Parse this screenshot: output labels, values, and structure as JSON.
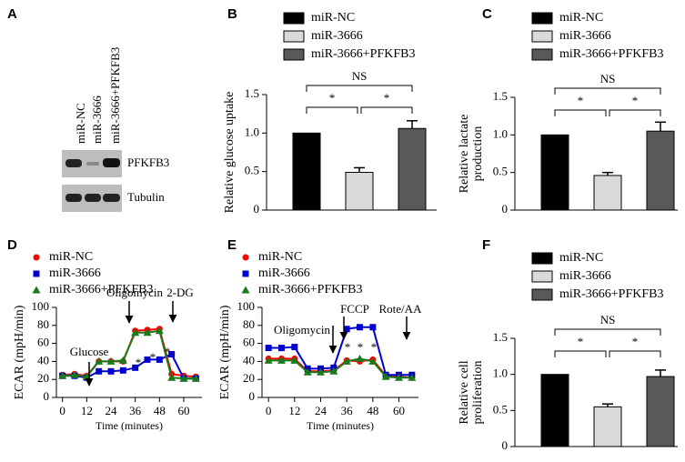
{
  "panel_labels": [
    "A",
    "B",
    "C",
    "D",
    "E",
    "F"
  ],
  "blot": {
    "lanes": [
      "miR-NC",
      "miR-3666",
      "miR-3666+PFKFB3"
    ],
    "bands": [
      "PFKFB3",
      "Tubulin"
    ]
  },
  "chart_data": [
    {
      "type": "bar",
      "categories": [
        "miR-NC",
        "miR-3666",
        "miR-3666+PFKFB3"
      ],
      "values": [
        1,
        0.49,
        1.06
      ],
      "errors": [
        0,
        0.06,
        0.1
      ],
      "colors": [
        "#000000",
        "#d9d9d9",
        "#595959"
      ],
      "ylabel": "Relative  glucose uptake",
      "ylim": [
        0,
        1.5
      ],
      "yticks": [
        0,
        0.5,
        {
          "value": 1,
          "label": "1.0"
        },
        1.5
      ],
      "significance": [
        "*",
        "*",
        "NS"
      ]
    },
    {
      "type": "bar",
      "categories": [
        "miR-NC",
        "miR-3666",
        "miR-3666+PFKFB3"
      ],
      "values": [
        1,
        0.46,
        1.05
      ],
      "errors": [
        0,
        0.04,
        0.12
      ],
      "colors": [
        "#000000",
        "#d9d9d9",
        "#595959"
      ],
      "ylabel": [
        "Relative  lactate",
        "production"
      ],
      "ylim": [
        0,
        1.5
      ],
      "yticks": [
        0,
        0.5,
        {
          "value": 1,
          "label": "1.0"
        },
        1.5
      ],
      "significance": [
        "*",
        "*",
        "NS"
      ]
    },
    {
      "type": "line",
      "x": [
        0,
        6,
        12,
        18,
        24,
        30,
        36,
        42,
        48,
        54,
        60,
        66
      ],
      "series": [
        {
          "name": "miR-NC",
          "color": "#ff0000",
          "marker": "circle",
          "values": [
            25,
            26,
            24,
            40,
            40,
            40,
            74,
            75,
            76,
            26,
            24,
            23
          ]
        },
        {
          "name": "miR-3666",
          "color": "#0000cc",
          "marker": "square",
          "values": [
            24,
            24,
            22,
            29,
            29,
            30,
            33,
            42,
            42,
            48,
            21,
            21
          ]
        },
        {
          "name": "miR-3666+PFKFB3",
          "color": "#1a7a1a",
          "marker": "triangle",
          "values": [
            24,
            25,
            23,
            40,
            40,
            41,
            72,
            72,
            74,
            22,
            21,
            21
          ]
        }
      ],
      "xlabel": "Time (minutes)",
      "ylabel": "ECAR (mpH/min)",
      "xlim": [
        -3,
        69
      ],
      "xticks": [
        0,
        12,
        24,
        36,
        48,
        60
      ],
      "ylim": [
        0,
        100
      ],
      "yticks": [
        0,
        20,
        40,
        60,
        80,
        100
      ],
      "annotations": [
        "Glucose",
        "Oligomycin",
        "2-DG"
      ],
      "asterisks": [
        "*",
        "*",
        "*"
      ]
    },
    {
      "type": "line",
      "x": [
        0,
        6,
        12,
        18,
        24,
        30,
        36,
        42,
        48,
        54,
        60,
        66
      ],
      "series": [
        {
          "name": "miR-NC",
          "color": "#ff0000",
          "marker": "circle",
          "values": [
            43,
            43,
            43,
            29,
            29,
            30,
            41,
            40,
            42,
            24,
            23,
            22
          ]
        },
        {
          "name": "miR-3666",
          "color": "#0000cc",
          "marker": "square",
          "values": [
            55,
            55,
            56,
            32,
            32,
            33,
            76,
            78,
            78,
            25,
            25,
            25
          ]
        },
        {
          "name": "miR-3666+PFKFB3",
          "color": "#1a7a1a",
          "marker": "triangle",
          "values": [
            41,
            41,
            41,
            28,
            28,
            29,
            40,
            43,
            40,
            23,
            22,
            22
          ]
        }
      ],
      "xlabel": "Time (minutes)",
      "ylabel": "ECAR (mpH/min)",
      "xlim": [
        -3,
        69
      ],
      "xticks": [
        0,
        12,
        24,
        36,
        48,
        60
      ],
      "ylim": [
        0,
        100
      ],
      "yticks": [
        0,
        20,
        40,
        60,
        80,
        100
      ],
      "annotations": [
        "Oligomycin",
        "FCCP",
        "Rote/AA"
      ],
      "asterisks": [
        "*",
        "*",
        "*"
      ]
    },
    {
      "type": "bar",
      "categories": [
        "miR-NC",
        "miR-3666",
        "miR-3666+PFKFB3"
      ],
      "values": [
        1,
        0.55,
        0.97
      ],
      "errors": [
        0,
        0.04,
        0.09
      ],
      "colors": [
        "#000000",
        "#d9d9d9",
        "#595959"
      ],
      "ylabel": [
        "Relative cell",
        "proliferation"
      ],
      "ylim": [
        0,
        1.5
      ],
      "yticks": [
        0,
        0.5,
        {
          "value": 1,
          "label": "1.0"
        },
        1.5
      ],
      "significance": [
        "*",
        "*",
        "NS"
      ]
    }
  ]
}
